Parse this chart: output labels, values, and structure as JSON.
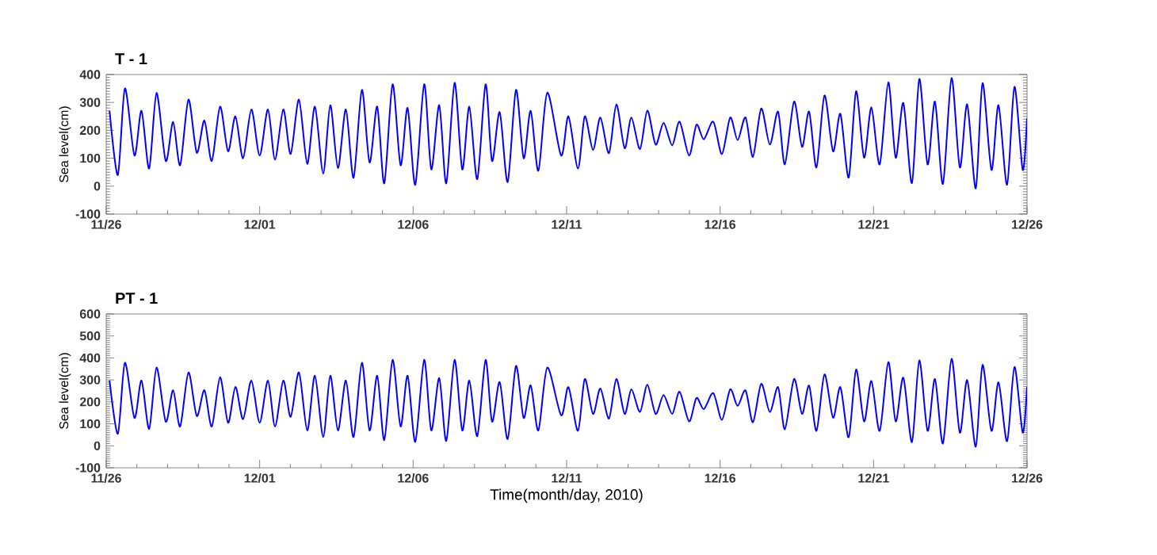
{
  "chart_data": [
    {
      "type": "line",
      "title": "T - 1",
      "ylabel": "Sea level(cm)",
      "color": "#0000ff",
      "xlim": [
        "2010-11-26",
        "2010-12-26"
      ],
      "ylim": [
        -100,
        400
      ],
      "xticks": [
        {
          "value": "2010-11-26",
          "label": "11/26"
        },
        {
          "value": "2010-12-01",
          "label": "12/01"
        },
        {
          "value": "2010-12-06",
          "label": "12/06"
        },
        {
          "value": "2010-12-11",
          "label": "12/11"
        },
        {
          "value": "2010-12-16",
          "label": "12/16"
        },
        {
          "value": "2010-12-21",
          "label": "12/21"
        },
        {
          "value": "2010-12-26",
          "label": "12/26"
        }
      ],
      "yticks": [
        -100,
        0,
        100,
        200,
        300,
        400
      ],
      "x": [
        "2010-11-26T02:38",
        "2010-11-26T09:07",
        "2010-11-26T14:38",
        "2010-11-26T22:05",
        "2010-11-27T03:36",
        "2010-11-27T09:36",
        "2010-11-27T15:22",
        "2010-11-27T22:34",
        "2010-11-28T04:19",
        "2010-11-28T09:50",
        "2010-11-28T16:19",
        "2010-11-28T22:48",
        "2010-11-29T04:48",
        "2010-11-29T10:34",
        "2010-11-29T17:02",
        "2010-11-29T23:17",
        "2010-11-30T05:02",
        "2010-11-30T11:02",
        "2010-11-30T17:31",
        "2010-12-01T00:00",
        "2010-12-01T06:29",
        "2010-12-01T12:00",
        "2010-12-01T18:29",
        "2010-12-02T00:14",
        "2010-12-02T06:43",
        "2010-12-02T13:12",
        "2010-12-02T19:12",
        "2010-12-03T01:41",
        "2010-12-03T07:12",
        "2010-12-03T13:12",
        "2010-12-03T19:26",
        "2010-12-04T01:26",
        "2010-12-04T07:55",
        "2010-12-04T13:55",
        "2010-12-04T19:55",
        "2010-12-05T01:26",
        "2010-12-05T07:55",
        "2010-12-05T14:10",
        "2010-12-05T19:41",
        "2010-12-06T01:41",
        "2010-12-06T08:38",
        "2010-12-06T14:10",
        "2010-12-06T20:24",
        "2010-12-07T01:55",
        "2010-12-07T08:24",
        "2010-12-07T14:24",
        "2010-12-07T19:55",
        "2010-12-08T02:10",
        "2010-12-08T08:38",
        "2010-12-08T13:41",
        "2010-12-08T19:41",
        "2010-12-09T01:55",
        "2010-12-09T08:24",
        "2010-12-09T14:24",
        "2010-12-09T19:55",
        "2010-12-10T01:55",
        "2010-12-10T08:53",
        "2010-12-10T19:41",
        "2010-12-11T01:26",
        "2010-12-11T08:53",
        "2010-12-11T14:10",
        "2010-12-11T20:38",
        "2010-12-12T02:24",
        "2010-12-12T09:07",
        "2010-12-12T14:53",
        "2010-12-12T21:22",
        "2010-12-13T02:38",
        "2010-12-13T09:22",
        "2010-12-13T15:07",
        "2010-12-13T21:36",
        "2010-12-14T03:50",
        "2010-12-14T10:34",
        "2010-12-14T16:19",
        "2010-12-14T23:46",
        "2010-12-15T05:31",
        "2010-12-15T11:17",
        "2010-12-15T18:43",
        "2010-12-16T01:26",
        "2010-12-16T07:55",
        "2010-12-16T13:41",
        "2010-12-16T19:55",
        "2010-12-17T01:41",
        "2010-12-17T08:10",
        "2010-12-17T14:53",
        "2010-12-17T21:22",
        "2010-12-18T02:38",
        "2010-12-18T09:50",
        "2010-12-18T16:05",
        "2010-12-18T21:36",
        "2010-12-19T03:22",
        "2010-12-19T09:36",
        "2010-12-19T16:19",
        "2010-12-19T22:05",
        "2010-12-20T04:34",
        "2010-12-20T10:19",
        "2010-12-20T16:34",
        "2010-12-20T22:19",
        "2010-12-21T04:48",
        "2010-12-21T11:31",
        "2010-12-21T17:17",
        "2010-12-21T23:17",
        "2010-12-22T06:00",
        "2010-12-22T11:46",
        "2010-12-22T18:14",
        "2010-12-23T00:00",
        "2010-12-23T06:14",
        "2010-12-23T12:58",
        "2010-12-23T19:26",
        "2010-12-24T01:12",
        "2010-12-24T07:55",
        "2010-12-24T13:12",
        "2010-12-24T20:10",
        "2010-12-25T01:41",
        "2010-12-25T08:24",
        "2010-12-25T14:10",
        "2010-12-25T20:38",
        "2010-12-26T00:00"
      ],
      "values": [
        270,
        40,
        350,
        110,
        270,
        63,
        334,
        90,
        230,
        75,
        310,
        120,
        235,
        90,
        285,
        125,
        250,
        100,
        275,
        110,
        275,
        95,
        275,
        115,
        310,
        80,
        285,
        45,
        290,
        65,
        275,
        30,
        345,
        85,
        285,
        10,
        365,
        75,
        280,
        5,
        365,
        60,
        290,
        10,
        370,
        60,
        285,
        25,
        365,
        90,
        265,
        15,
        345,
        100,
        270,
        55,
        335,
        110,
        250,
        63,
        250,
        130,
        246,
        118,
        293,
        136,
        246,
        133,
        271,
        149,
        227,
        146,
        231,
        110,
        220,
        168,
        231,
        115,
        246,
        165,
        246,
        105,
        278,
        149,
        267,
        78,
        303,
        141,
        267,
        67,
        325,
        125,
        259,
        31,
        340,
        102,
        282,
        78,
        372,
        102,
        298,
        11,
        384,
        78,
        303,
        8,
        387,
        67,
        293,
        -8,
        369,
        58,
        290,
        5,
        356,
        58,
        243
      ]
    },
    {
      "type": "line",
      "title": "PT - 1",
      "ylabel": "Sea level(cm)",
      "xlabel": "Time(month/day, 2010)",
      "color": "#0000ff",
      "xlim": [
        "2010-11-26",
        "2010-12-26"
      ],
      "ylim": [
        -100,
        600
      ],
      "xticks": [
        {
          "value": "2010-11-26",
          "label": "11/26"
        },
        {
          "value": "2010-12-01",
          "label": "12/01"
        },
        {
          "value": "2010-12-06",
          "label": "12/06"
        },
        {
          "value": "2010-12-11",
          "label": "12/11"
        },
        {
          "value": "2010-12-16",
          "label": "12/16"
        },
        {
          "value": "2010-12-21",
          "label": "12/21"
        },
        {
          "value": "2010-12-26",
          "label": "12/26"
        }
      ],
      "yticks": [
        -100,
        0,
        100,
        200,
        300,
        400,
        500,
        600
      ],
      "x": [
        "2010-11-26T02:38",
        "2010-11-26T09:07",
        "2010-11-26T14:38",
        "2010-11-26T22:05",
        "2010-11-27T03:36",
        "2010-11-27T09:36",
        "2010-11-27T15:22",
        "2010-11-27T22:34",
        "2010-11-28T04:19",
        "2010-11-28T09:50",
        "2010-11-28T16:19",
        "2010-11-28T22:48",
        "2010-11-29T04:48",
        "2010-11-29T10:34",
        "2010-11-29T17:02",
        "2010-11-29T23:17",
        "2010-11-30T05:02",
        "2010-11-30T11:02",
        "2010-11-30T17:31",
        "2010-12-01T00:00",
        "2010-12-01T06:29",
        "2010-12-01T12:00",
        "2010-12-01T18:29",
        "2010-12-02T00:14",
        "2010-12-02T06:43",
        "2010-12-02T13:12",
        "2010-12-02T19:12",
        "2010-12-03T01:41",
        "2010-12-03T07:12",
        "2010-12-03T13:12",
        "2010-12-03T19:26",
        "2010-12-04T01:26",
        "2010-12-04T07:55",
        "2010-12-04T13:55",
        "2010-12-04T19:55",
        "2010-12-05T01:26",
        "2010-12-05T07:55",
        "2010-12-05T14:10",
        "2010-12-05T19:41",
        "2010-12-06T01:41",
        "2010-12-06T08:38",
        "2010-12-06T14:10",
        "2010-12-06T20:24",
        "2010-12-07T01:55",
        "2010-12-07T08:24",
        "2010-12-07T14:24",
        "2010-12-07T19:55",
        "2010-12-08T02:10",
        "2010-12-08T08:38",
        "2010-12-08T13:41",
        "2010-12-08T19:41",
        "2010-12-09T01:55",
        "2010-12-09T08:24",
        "2010-12-09T14:24",
        "2010-12-09T19:55",
        "2010-12-10T01:55",
        "2010-12-10T08:53",
        "2010-12-10T19:41",
        "2010-12-11T01:26",
        "2010-12-11T08:53",
        "2010-12-11T14:10",
        "2010-12-11T20:38",
        "2010-12-12T02:24",
        "2010-12-12T09:07",
        "2010-12-12T14:53",
        "2010-12-12T21:22",
        "2010-12-13T02:38",
        "2010-12-13T09:22",
        "2010-12-13T15:07",
        "2010-12-13T21:36",
        "2010-12-14T03:50",
        "2010-12-14T10:34",
        "2010-12-14T16:19",
        "2010-12-14T23:46",
        "2010-12-15T05:31",
        "2010-12-15T11:17",
        "2010-12-15T18:43",
        "2010-12-16T01:26",
        "2010-12-16T07:55",
        "2010-12-16T13:41",
        "2010-12-16T19:55",
        "2010-12-17T01:41",
        "2010-12-17T08:10",
        "2010-12-17T14:53",
        "2010-12-17T21:22",
        "2010-12-18T02:38",
        "2010-12-18T09:50",
        "2010-12-18T16:05",
        "2010-12-18T21:36",
        "2010-12-19T03:22",
        "2010-12-19T09:36",
        "2010-12-19T16:19",
        "2010-12-19T22:05",
        "2010-12-20T04:34",
        "2010-12-20T10:19",
        "2010-12-20T16:34",
        "2010-12-20T22:19",
        "2010-12-21T04:48",
        "2010-12-21T11:31",
        "2010-12-21T17:17",
        "2010-12-21T23:17",
        "2010-12-22T06:00",
        "2010-12-22T11:46",
        "2010-12-22T18:14",
        "2010-12-23T00:00",
        "2010-12-23T06:14",
        "2010-12-23T12:58",
        "2010-12-23T19:26",
        "2010-12-24T01:12",
        "2010-12-24T07:55",
        "2010-12-24T13:12",
        "2010-12-24T20:10",
        "2010-12-25T01:41",
        "2010-12-25T08:24",
        "2010-12-25T14:10",
        "2010-12-25T20:38",
        "2010-12-26T00:00"
      ],
      "values": [
        297,
        55,
        378,
        127,
        297,
        77,
        356,
        110,
        253,
        88,
        334,
        136,
        253,
        88,
        312,
        105,
        268,
        121,
        297,
        105,
        297,
        88,
        297,
        132,
        334,
        70,
        319,
        40,
        319,
        70,
        297,
        40,
        378,
        70,
        319,
        26,
        391,
        88,
        319,
        18,
        391,
        70,
        308,
        22,
        391,
        70,
        297,
        44,
        391,
        110,
        290,
        31,
        363,
        127,
        275,
        70,
        356,
        139,
        267,
        68,
        304,
        145,
        261,
        124,
        304,
        145,
        257,
        154,
        278,
        145,
        231,
        145,
        246,
        111,
        218,
        167,
        240,
        118,
        257,
        182,
        252,
        107,
        282,
        154,
        267,
        75,
        304,
        145,
        274,
        68,
        325,
        128,
        267,
        39,
        347,
        111,
        295,
        68,
        381,
        111,
        310,
        17,
        389,
        68,
        304,
        11,
        396,
        60,
        299,
        -4,
        368,
        68,
        289,
        21,
        359,
        60,
        267
      ]
    }
  ]
}
